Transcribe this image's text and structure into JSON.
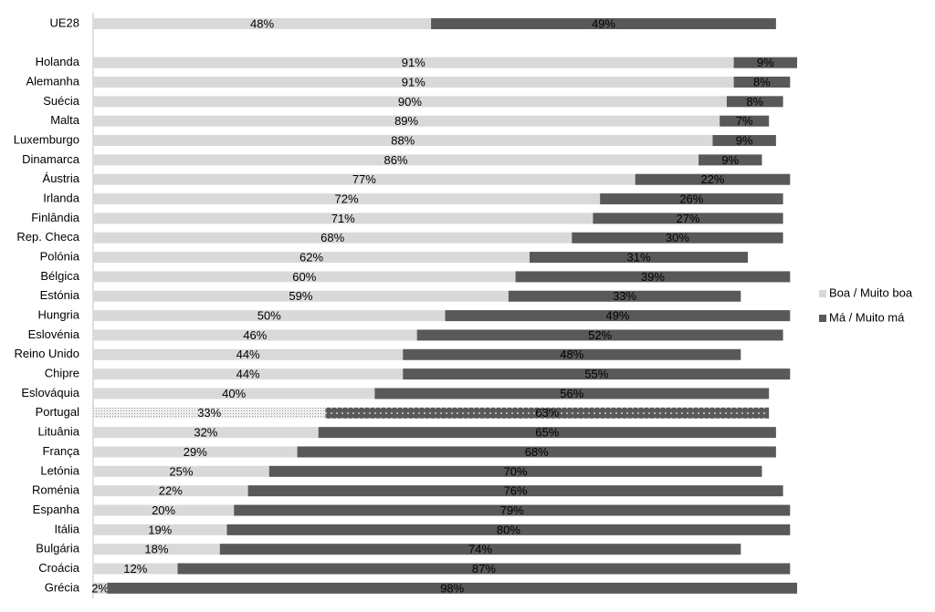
{
  "chart_data": {
    "type": "stacked_bar_horizontal",
    "categories": [
      "UE28",
      null,
      "Holanda",
      "Alemanha",
      "Suécia",
      "Malta",
      "Luxemburgo",
      "Dinamarca",
      "Áustria",
      "Irlanda",
      "Finlândia",
      "Rep. Checa",
      "Polónia",
      "Bélgica",
      "Estónia",
      "Hungria",
      "Eslovénia",
      "Reino Unido",
      "Chipre",
      "Eslováquia",
      "Portugal",
      "Lituânia",
      "França",
      "Letónia",
      "Roménia",
      "Espanha",
      "Itália",
      "Bulgária",
      "Croácia",
      "Grécia"
    ],
    "series": [
      {
        "name": "Boa / Muito boa",
        "color": "#d9d9d9",
        "label_color": "#000000",
        "values": [
          48,
          null,
          91,
          91,
          90,
          89,
          88,
          86,
          77,
          72,
          71,
          68,
          62,
          60,
          59,
          50,
          46,
          44,
          44,
          40,
          33,
          32,
          29,
          25,
          22,
          20,
          19,
          18,
          12,
          2
        ],
        "value_labels": [
          "48%",
          null,
          "91%",
          "91%",
          "90%",
          "89%",
          "88%",
          "86%",
          "77%",
          "72%",
          "71%",
          "68%",
          "62%",
          "60%",
          "59%",
          "50%",
          "46%",
          "44%",
          "44%",
          "40%",
          "33%",
          "32%",
          "29%",
          "25%",
          "22%",
          "20%",
          "19%",
          "18%",
          "12%",
          "2%"
        ]
      },
      {
        "name": "Má / Muito má",
        "color": "#595959",
        "label_color": "#ffffff",
        "values": [
          49,
          null,
          9,
          8,
          8,
          7,
          9,
          9,
          22,
          26,
          27,
          30,
          31,
          39,
          33,
          49,
          52,
          48,
          55,
          56,
          63,
          65,
          68,
          70,
          76,
          79,
          80,
          74,
          87,
          98
        ],
        "value_labels": [
          "49%",
          null,
          "9%",
          "8%",
          "8%",
          "7%",
          "9%",
          "9%",
          "22%",
          "26%",
          "27%",
          "30%",
          "31%",
          "39%",
          "33%",
          "49%",
          "52%",
          "48%",
          "55%",
          "56%",
          "63%",
          "65%",
          "68%",
          "70%",
          "76%",
          "79%",
          "80%",
          "74%",
          "87%",
          "98%"
        ]
      }
    ],
    "highlight": "Portugal",
    "xlim": [
      0,
      100
    ],
    "legend": "right"
  }
}
